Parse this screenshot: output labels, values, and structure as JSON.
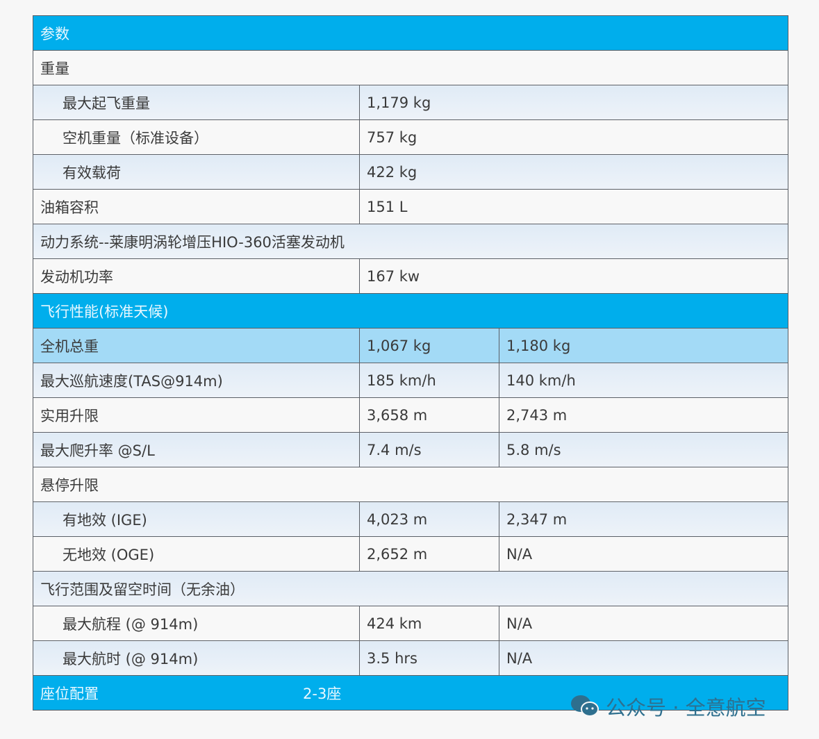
{
  "header": "参数",
  "rows": [
    {
      "label": "重量"
    },
    {
      "label": "最大起飞重量",
      "v1": "1,179 kg"
    },
    {
      "label": "空机重量（标准设备）",
      "v1": "757 kg"
    },
    {
      "label": "有效载荷",
      "v1": "422 kg"
    },
    {
      "label": "油箱容积",
      "v1": "151 L"
    },
    {
      "label": "动力系统--莱康明涡轮增压HIO-360活塞发动机"
    },
    {
      "label": "发动机功率",
      "v1": "167 kw"
    }
  ],
  "perf_header": "飞行性能(标准天候)",
  "perf": [
    {
      "label": "全机总重",
      "v1": "1,067 kg",
      "v2": "1,180 kg"
    },
    {
      "label": "最大巡航速度(TAS@914m)",
      "v1": "185 km/h",
      "v2": "140 km/h"
    },
    {
      "label": "实用升限",
      "v1": "3,658 m",
      "v2": "2,743 m"
    },
    {
      "label": "最大爬升率 @S/L",
      "v1": "7.4 m/s",
      "v2": "5.8 m/s"
    },
    {
      "label": "悬停升限"
    },
    {
      "label": "有地效 (IGE)",
      "v1": "4,023 m",
      "v2": "2,347 m"
    },
    {
      "label": "无地效 (OGE)",
      "v1": "2,652 m",
      "v2": "N/A"
    },
    {
      "label": "飞行范围及留空时间（无余油）"
    },
    {
      "label": "最大航程 (@ 914m)",
      "v1": "424 km",
      "v2": "N/A"
    },
    {
      "label": "最大航时 (@ 914m)",
      "v1": "3.5 hrs",
      "v2": "N/A"
    }
  ],
  "seat": {
    "label": "座位配置",
    "value": "2-3座"
  },
  "watermark": "公众号 · 全意航空",
  "colors": {
    "header_blue": "#00aeec",
    "highlight_row": "#a3daf6",
    "light_row": "#e5eef8"
  }
}
